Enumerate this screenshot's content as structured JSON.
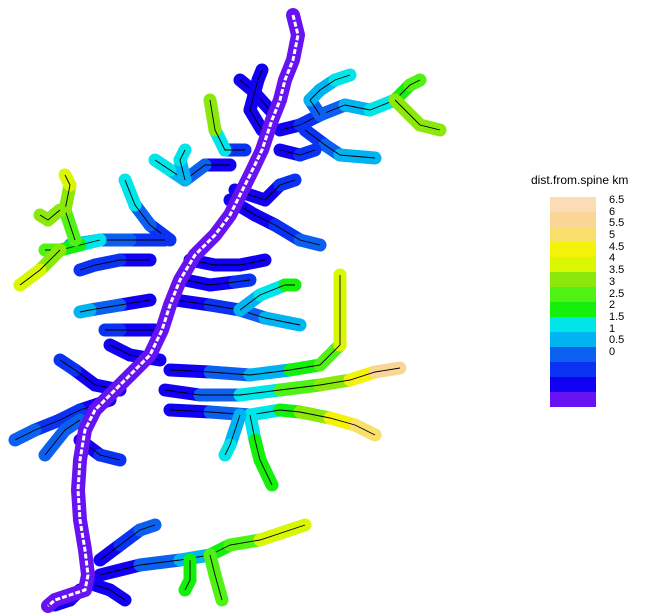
{
  "legend": {
    "title": "dist.from.spine km",
    "labels": [
      "6.5",
      "6",
      "5.5",
      "5",
      "4.5",
      "4",
      "3.5",
      "3",
      "2.5",
      "2",
      "1.5",
      "1",
      "0.5",
      "0"
    ],
    "colors": [
      "#FBDCB4",
      "#FAD596",
      "#F9E06C",
      "#F5F20A",
      "#D9F703",
      "#8AE80B",
      "#50F214",
      "#14F00C",
      "#00E6E8",
      "#00B4F2",
      "#0C60F0",
      "#0A32F2",
      "#1200F2",
      "#6612F2"
    ]
  },
  "map": {
    "spine_color": "#6612F2",
    "centerline_color": "#ffffff",
    "channel_color": "#000000"
  }
}
